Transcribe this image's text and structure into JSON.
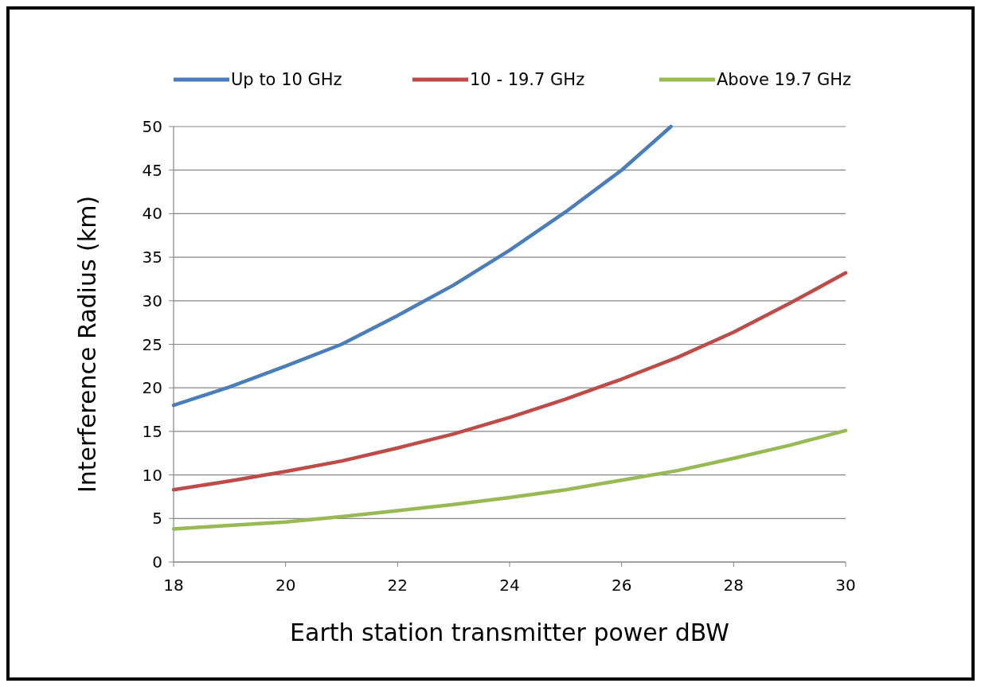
{
  "chart_data": {
    "type": "line",
    "xlabel": "Earth station transmitter power dBW",
    "ylabel": "Interference Radius (km)",
    "xlim": [
      18,
      30
    ],
    "xticks": [
      18,
      20,
      22,
      24,
      26,
      28,
      30
    ],
    "ylim": [
      0,
      50
    ],
    "yticks": [
      0,
      5,
      10,
      15,
      20,
      25,
      30,
      35,
      40,
      45,
      50
    ],
    "grid": "y",
    "legend": "top",
    "marker": "none",
    "line_style": "solid",
    "series": [
      {
        "name": "Up to 10 GHz",
        "color": "#4a7ebb",
        "x": [
          18,
          19,
          20,
          21,
          22,
          23,
          24,
          25,
          26,
          26.88
        ],
        "values": [
          18,
          20.1,
          22.5,
          25,
          28.3,
          31.8,
          35.8,
          40.2,
          45,
          50
        ]
      },
      {
        "name": "10 - 19.7 GHz",
        "color": "#be4b48",
        "x": [
          18,
          19,
          20,
          21,
          22,
          23,
          24,
          25,
          26,
          27,
          28,
          29,
          30
        ],
        "values": [
          8.3,
          9.3,
          10.4,
          11.6,
          13.1,
          14.7,
          16.6,
          18.7,
          21,
          23.5,
          26.4,
          29.7,
          33.2
        ]
      },
      {
        "name": "Above 19.7 GHz",
        "color": "#98b954",
        "x": [
          18,
          19,
          20,
          21,
          22,
          23,
          24,
          25,
          26,
          27,
          28,
          29,
          30
        ],
        "values": [
          3.8,
          4.2,
          4.6,
          5.2,
          5.9,
          6.6,
          7.4,
          8.3,
          9.4,
          10.5,
          11.9,
          13.4,
          15.1
        ]
      }
    ]
  }
}
